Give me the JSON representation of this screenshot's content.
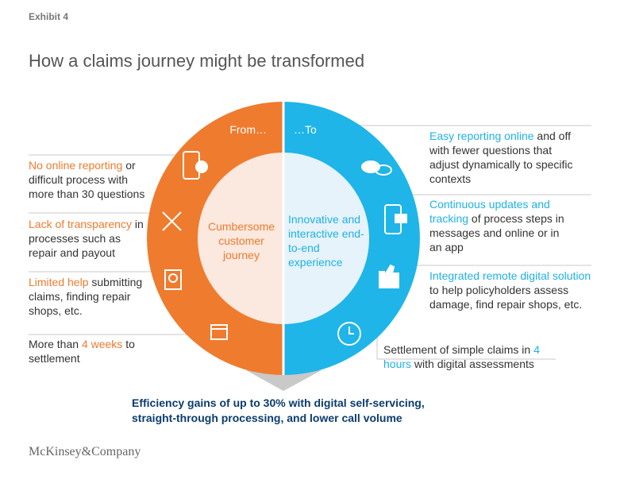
{
  "header": {
    "exhibit": "Exhibit 4",
    "title": "How a claims journey might be transformed"
  },
  "circle": {
    "from_label": "From…",
    "to_label": "…To",
    "from_center": "Cumbersome customer journey",
    "to_center": "Innovative and interactive end-to-end experience"
  },
  "from_items": [
    {
      "highlight": "No online reporting",
      "text": "or difficult process with more than 30 questions"
    },
    {
      "highlight": "Lack of transparency",
      "text": "in processes such as repair and payout"
    },
    {
      "highlight": "Limited help",
      "text": "submitting claims, finding repair shops, etc."
    },
    {
      "before": "More than",
      "highlight": "4 weeks",
      "text": "to settlement"
    }
  ],
  "to_items": [
    {
      "highlight": "Easy reporting online",
      "text": "and off with fewer questions that adjust dynamically to specific contexts"
    },
    {
      "highlight": "Continuous updates and tracking",
      "text": "of process steps in messages and online or in an app"
    },
    {
      "highlight": "Integrated remote digital solution",
      "text": "to help policyholders assess damage, find repair shops, etc."
    },
    {
      "before": "Settlement of simple claims in",
      "highlight": "4 hours",
      "text": "with digital assessments"
    }
  ],
  "conclusion": "Efficiency gains of up to 30% with digital self-servicing, straight-through processing, and lower call volume",
  "footer": "McKinsey&Company"
}
